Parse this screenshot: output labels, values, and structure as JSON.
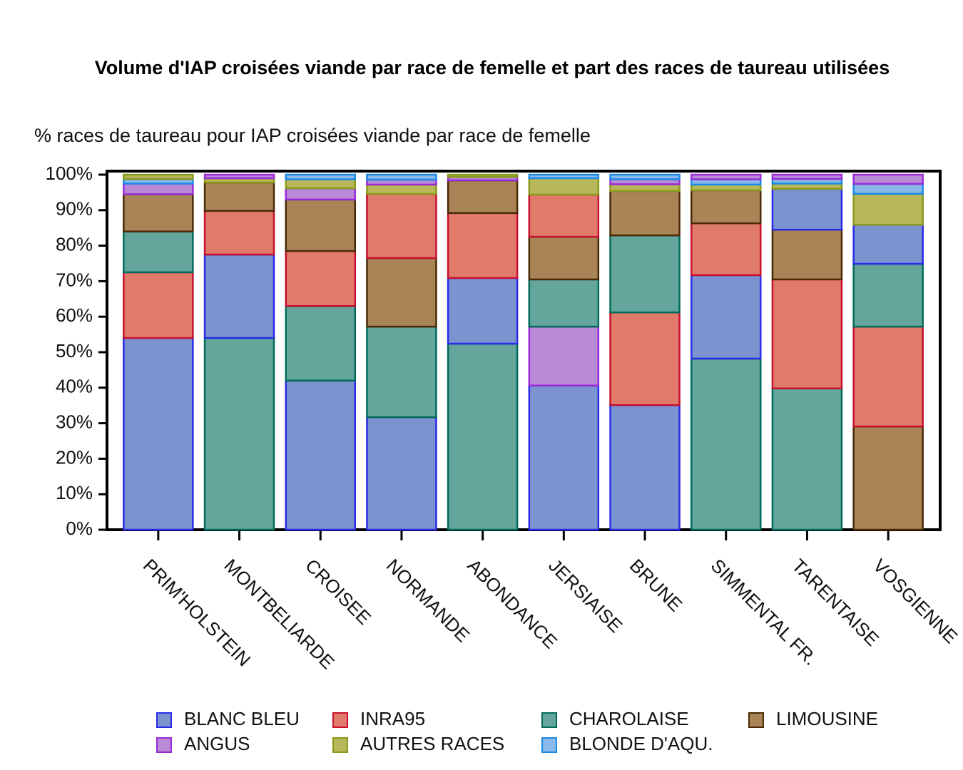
{
  "chart_data": {
    "type": "stacked_bar",
    "title": "Volume d'IAP croisées viande par race de femelle et part des races de taureau utilisées",
    "subtitle": "% races de taureau pour IAP croisées viande par race de femelle",
    "categories": [
      "PRIM'HOLSTEIN",
      "MONTBELIARDE",
      "CROISEE",
      "NORMANDE",
      "ABONDANCE",
      "JERSIAISE",
      "BRUNE",
      "SIMMENTAL FR.",
      "TARENTAISE",
      "VOSGIENNE"
    ],
    "series": [
      {
        "name": "BLANC BLEU",
        "color": "#7b93cf",
        "edgecolor": "#2a2ae8",
        "values": [
          54,
          23.5,
          42,
          31.7,
          18.5,
          40.6,
          35.1,
          23.5,
          11.5,
          11
        ]
      },
      {
        "name": "INRA95",
        "color": "#e07b6b",
        "edgecolor": "#c8102e",
        "values": [
          18.5,
          12.3,
          15.5,
          18.1,
          18.3,
          11.9,
          26.1,
          14.6,
          30.7,
          28.1
        ]
      },
      {
        "name": "CHAROLAISE",
        "color": "#64a59c",
        "edgecolor": "#006b5a",
        "values": [
          11.5,
          54,
          21,
          25.5,
          52.4,
          13.3,
          21.7,
          48.2,
          39.8,
          17.7
        ]
      },
      {
        "name": "LIMOUSINE",
        "color": "#a88456",
        "edgecolor": "#4a2a05",
        "values": [
          10.5,
          8,
          14.5,
          19.3,
          9.2,
          12,
          12.5,
          9.3,
          14,
          29.1
        ]
      },
      {
        "name": "ANGUS",
        "color": "#b98ad6",
        "edgecolor": "#9a2ad8",
        "values": [
          3,
          1,
          3.2,
          1.4,
          1,
          16.6,
          1.4,
          1.3,
          1.2,
          2.6
        ]
      },
      {
        "name": "AUTRES RACES",
        "color": "#b8b85a",
        "edgecolor": "#8a9a1a",
        "values": [
          1.2,
          1.2,
          2.5,
          2.6,
          0.6,
          4.6,
          1.9,
          1.6,
          1.5,
          8.7
        ]
      },
      {
        "name": "BLONDE D'AQU.",
        "color": "#8ab8e8",
        "edgecolor": "#1a8ae8",
        "values": [
          1.3,
          0,
          1.3,
          1.4,
          0,
          1,
          1.3,
          1.5,
          1.3,
          2.8
        ]
      }
    ],
    "ylim": [
      0,
      100
    ],
    "yticks": [
      {
        "value": 0,
        "label": "0%"
      },
      {
        "value": 10,
        "label": "10%"
      },
      {
        "value": 20,
        "label": "20%"
      },
      {
        "value": 30,
        "label": "30%"
      },
      {
        "value": 40,
        "label": "40%"
      },
      {
        "value": 50,
        "label": "50%"
      },
      {
        "value": 60,
        "label": "60%"
      },
      {
        "value": 70,
        "label": "70%"
      },
      {
        "value": 80,
        "label": "80%"
      },
      {
        "value": 90,
        "label": "90%"
      },
      {
        "value": 100,
        "label": "100%"
      }
    ],
    "legend": "bottom"
  }
}
